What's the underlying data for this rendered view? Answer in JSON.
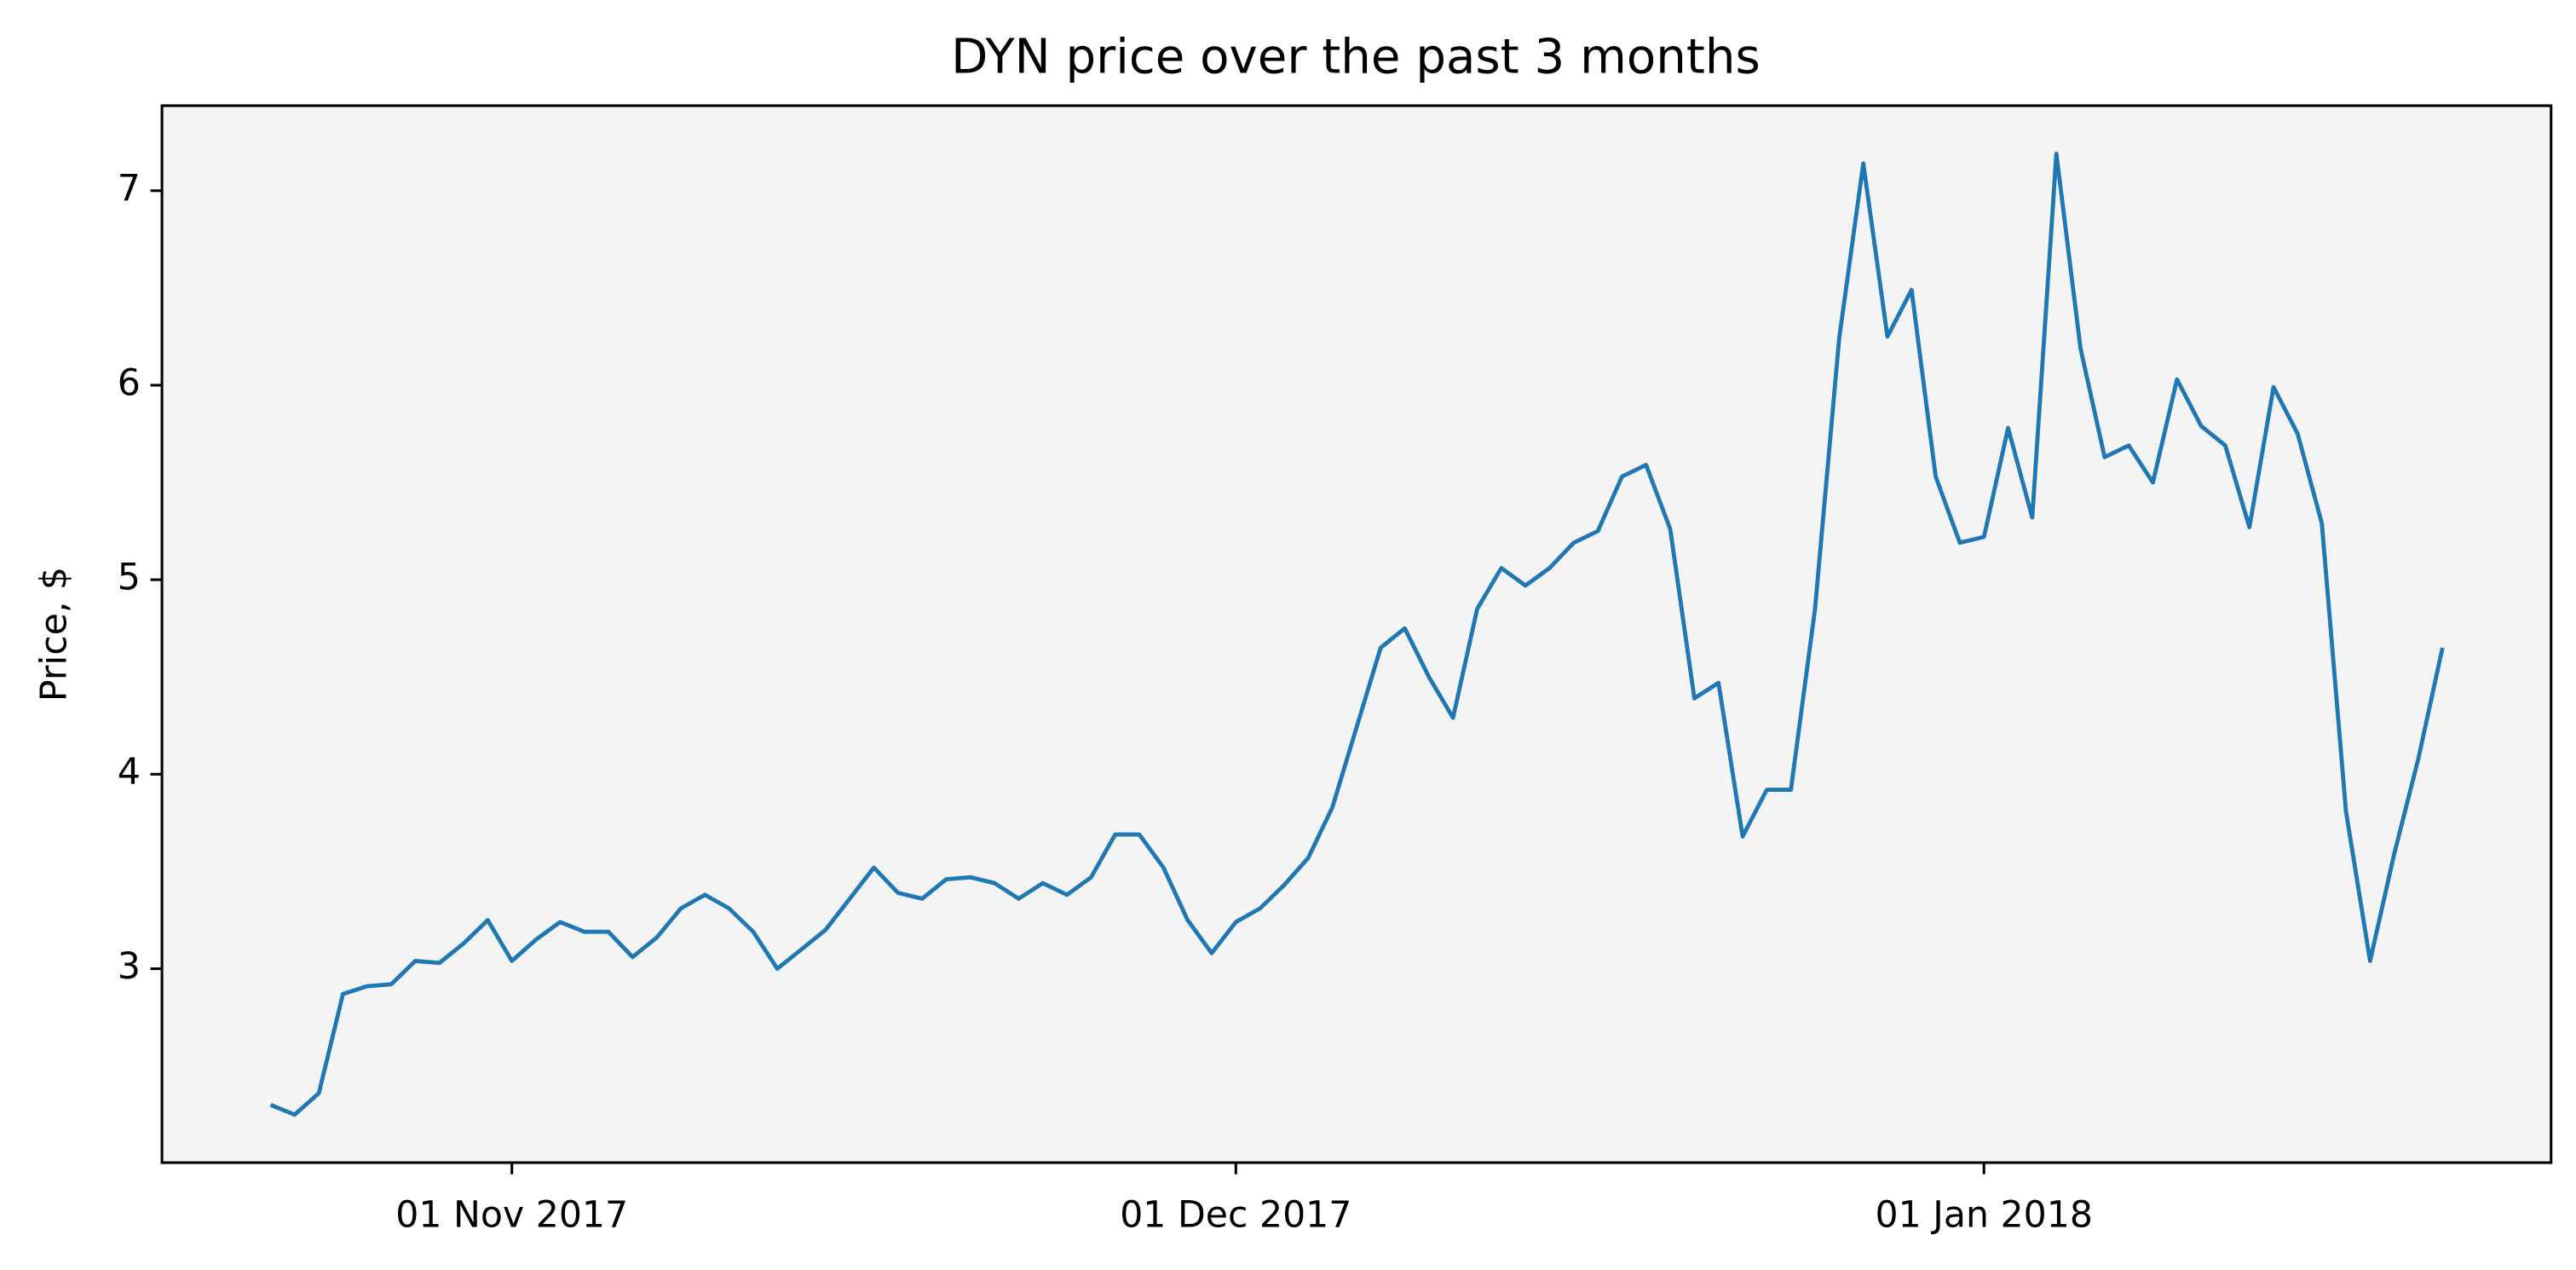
{
  "chart_data": {
    "type": "line",
    "title": "DYN price over the past 3 months",
    "y_label": "Price, $",
    "x": [
      "2017-10-22",
      "2017-10-23",
      "2017-10-24",
      "2017-10-25",
      "2017-10-26",
      "2017-10-27",
      "2017-10-28",
      "2017-10-29",
      "2017-10-30",
      "2017-10-31",
      "2017-11-01",
      "2017-11-02",
      "2017-11-03",
      "2017-11-04",
      "2017-11-05",
      "2017-11-06",
      "2017-11-07",
      "2017-11-08",
      "2017-11-09",
      "2017-11-10",
      "2017-11-11",
      "2017-11-12",
      "2017-11-13",
      "2017-11-14",
      "2017-11-15",
      "2017-11-16",
      "2017-11-17",
      "2017-11-18",
      "2017-11-19",
      "2017-11-20",
      "2017-11-21",
      "2017-11-22",
      "2017-11-23",
      "2017-11-24",
      "2017-11-25",
      "2017-11-26",
      "2017-11-27",
      "2017-11-28",
      "2017-11-29",
      "2017-11-30",
      "2017-12-01",
      "2017-12-02",
      "2017-12-03",
      "2017-12-04",
      "2017-12-05",
      "2017-12-06",
      "2017-12-07",
      "2017-12-08",
      "2017-12-09",
      "2017-12-10",
      "2017-12-11",
      "2017-12-12",
      "2017-12-13",
      "2017-12-14",
      "2017-12-15",
      "2017-12-16",
      "2017-12-17",
      "2017-12-18",
      "2017-12-19",
      "2017-12-20",
      "2017-12-21",
      "2017-12-22",
      "2017-12-23",
      "2017-12-24",
      "2017-12-25",
      "2017-12-26",
      "2017-12-27",
      "2017-12-28",
      "2017-12-29",
      "2017-12-30",
      "2017-12-31",
      "2018-01-01",
      "2018-01-02",
      "2018-01-03",
      "2018-01-04",
      "2018-01-05",
      "2018-01-06",
      "2018-01-07",
      "2018-01-08",
      "2018-01-09",
      "2018-01-10",
      "2018-01-11",
      "2018-01-12",
      "2018-01-13",
      "2018-01-14",
      "2018-01-15",
      "2018-01-16",
      "2018-01-17",
      "2018-01-18",
      "2018-01-19",
      "2018-01-20"
    ],
    "series": [
      {
        "name": "DYN",
        "color": "#1f77b4",
        "values": [
          2.3,
          2.25,
          2.36,
          2.87,
          2.91,
          2.92,
          3.04,
          3.03,
          3.13,
          3.25,
          3.04,
          3.15,
          3.24,
          3.19,
          3.19,
          3.06,
          3.16,
          3.31,
          3.38,
          3.31,
          3.19,
          3.0,
          3.1,
          3.2,
          3.36,
          3.52,
          3.39,
          3.36,
          3.46,
          3.47,
          3.44,
          3.36,
          3.44,
          3.38,
          3.47,
          3.69,
          3.69,
          3.52,
          3.25,
          3.08,
          3.24,
          3.31,
          3.43,
          3.57,
          3.83,
          4.24,
          4.65,
          4.75,
          4.5,
          4.29,
          4.85,
          5.06,
          4.97,
          5.06,
          5.19,
          5.25,
          5.53,
          5.59,
          5.26,
          4.39,
          4.47,
          3.68,
          3.92,
          3.92,
          4.85,
          6.24,
          7.14,
          6.25,
          6.49,
          5.53,
          5.19,
          5.22,
          5.78,
          5.32,
          7.19,
          6.19,
          5.63,
          5.69,
          5.5,
          6.03,
          5.79,
          5.69,
          5.27,
          5.99,
          5.75,
          5.29,
          3.81,
          3.04,
          3.59,
          4.08,
          4.65
        ]
      }
    ],
    "xlim": [
      "2017-10-17T12:00",
      "2018-01-24T12:00"
    ],
    "xticks": [
      {
        "value": "2017-11-01",
        "label": "01 Nov 2017"
      },
      {
        "value": "2017-12-01",
        "label": "01 Dec 2017"
      },
      {
        "value": "2018-01-01",
        "label": "01 Jan 2018"
      }
    ],
    "ylim": [
      2.003,
      7.437
    ],
    "yticks": [
      3,
      4,
      5,
      6,
      7
    ],
    "grid": false,
    "background": "#f4f4f4"
  }
}
